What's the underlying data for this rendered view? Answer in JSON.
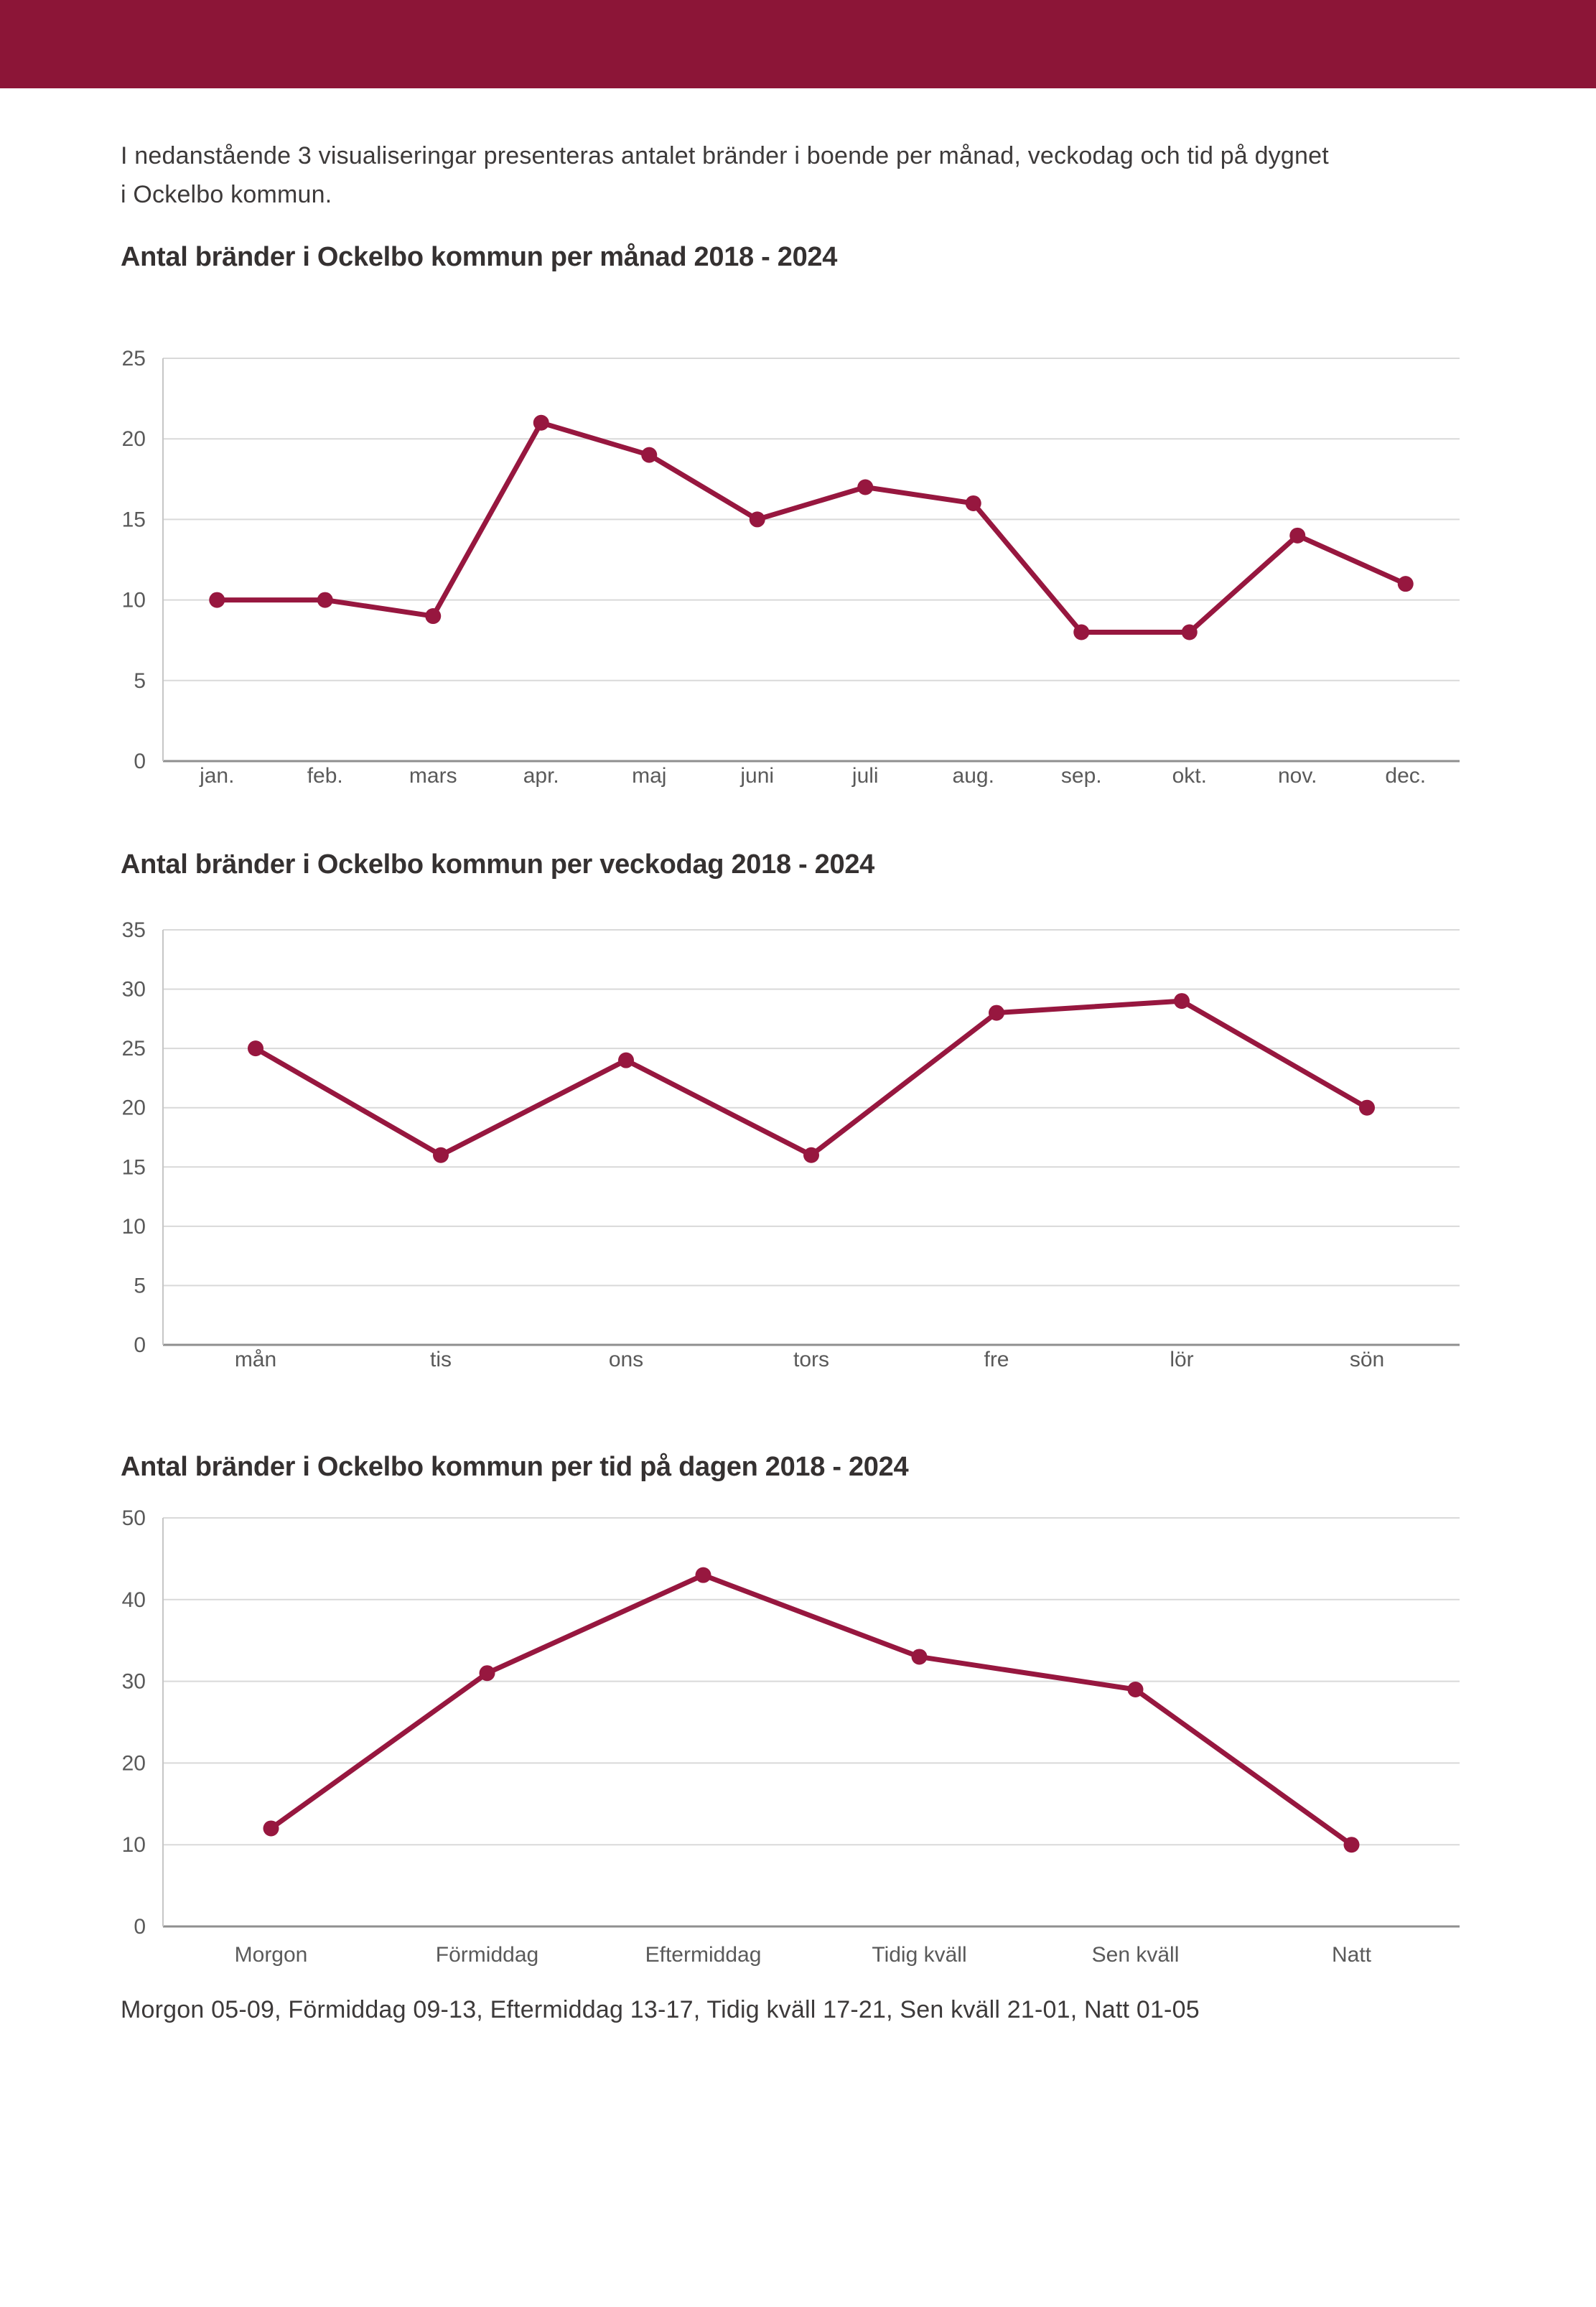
{
  "page": {
    "header_color": "#8C1537",
    "background_color": "#ffffff"
  },
  "intro": {
    "line1": "I nedanstående 3 visualiseringar presenteras antalet bränder i boende per månad, veckodag och tid på dygnet",
    "line2": "i Ockelbo kommun."
  },
  "chart_data": [
    {
      "type": "line",
      "title": "Antal bränder i Ockelbo kommun per månad 2018 - 2024",
      "categories": [
        "jan.",
        "feb.",
        "mars",
        "apr.",
        "maj",
        "juni",
        "juli",
        "aug.",
        "sep.",
        "okt.",
        "nov.",
        "dec."
      ],
      "values": [
        10,
        10,
        9,
        21,
        19,
        15,
        17,
        16,
        8,
        8,
        14,
        11
      ],
      "xlabel": "",
      "ylabel": "",
      "ylim": [
        0,
        25
      ],
      "ystep": 5,
      "grid": true,
      "legend": "none",
      "line_color": "#97173F"
    },
    {
      "type": "line",
      "title": "Antal bränder i Ockelbo kommun per veckodag 2018 - 2024",
      "categories": [
        "mån",
        "tis",
        "ons",
        "tors",
        "fre",
        "lör",
        "sön"
      ],
      "values": [
        25,
        16,
        24,
        16,
        28,
        29,
        20
      ],
      "xlabel": "",
      "ylabel": "",
      "ylim": [
        0,
        35
      ],
      "ystep": 5,
      "grid": true,
      "legend": "none",
      "line_color": "#97173F"
    },
    {
      "type": "line",
      "title": "Antal bränder i Ockelbo kommun per tid på dagen 2018 - 2024",
      "categories": [
        "Morgon",
        "Förmiddag",
        "Eftermiddag",
        "Tidig kväll",
        "Sen kväll",
        "Natt"
      ],
      "values": [
        12,
        31,
        43,
        33,
        29,
        10
      ],
      "xlabel": "",
      "ylabel": "",
      "ylim": [
        0,
        50
      ],
      "ystep": 10,
      "grid": true,
      "legend": "none",
      "line_color": "#97173F"
    }
  ],
  "footer": {
    "note": "Morgon 05-09, Förmiddag 09-13, Eftermiddag 13-17, Tidig kväll 17-21, Sen kväll 21-01, Natt 01-05"
  }
}
